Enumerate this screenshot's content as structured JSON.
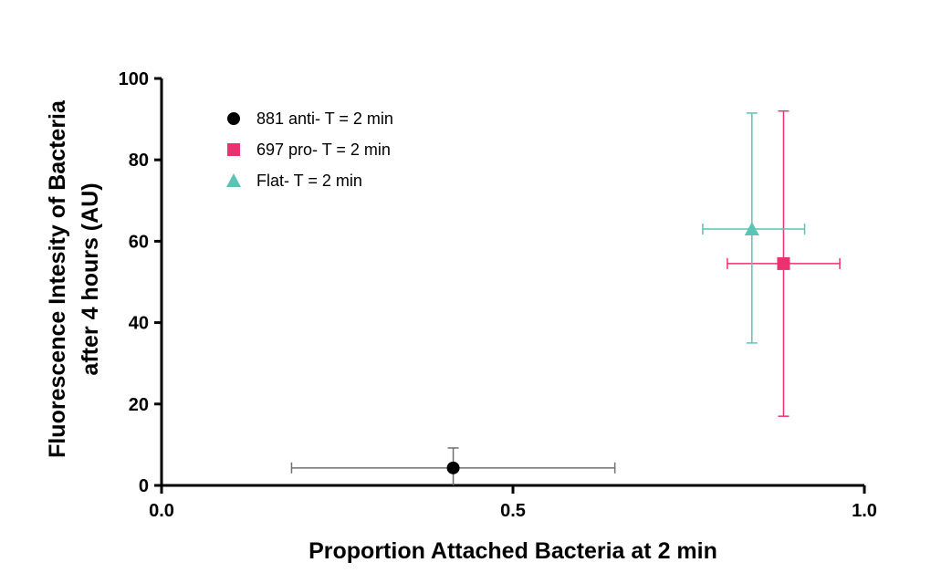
{
  "chart_data": {
    "type": "scatter",
    "xlabel": "Proportion Attached Bacteria at 2 min",
    "ylabel": [
      "Fluorescence Intesity of Bacteria",
      "after 4 hours (AU)"
    ],
    "xlim": [
      0,
      1
    ],
    "ylim": [
      0,
      100
    ],
    "x_ticks": [
      {
        "value": 0,
        "label": "0.0"
      },
      {
        "value": 0.5,
        "label": "0.5"
      },
      {
        "value": 1,
        "label": "1.0"
      }
    ],
    "y_ticks": [
      {
        "value": 0,
        "label": "0"
      },
      {
        "value": 20,
        "label": "20"
      },
      {
        "value": 40,
        "label": "40"
      },
      {
        "value": 60,
        "label": "60"
      },
      {
        "value": 80,
        "label": "80"
      },
      {
        "value": 100,
        "label": "100"
      }
    ],
    "legend_position": "top-left",
    "grid": false,
    "series": [
      {
        "name": "881 anti- T = 2 min",
        "marker": "circle",
        "color": "#000000",
        "x": 0.415,
        "y": 4.3,
        "x_err": [
          0.185,
          0.645
        ],
        "y_err": [
          0,
          9.2
        ]
      },
      {
        "name": "697 pro- T = 2 min",
        "marker": "square",
        "color": "#e8336e",
        "x": 0.885,
        "y": 54.5,
        "x_err": [
          0.805,
          0.965
        ],
        "y_err": [
          17,
          92
        ]
      },
      {
        "name": "Flat- T = 2 min",
        "marker": "triangle",
        "color": "#5cc4b2",
        "x": 0.84,
        "y": 63,
        "x_err": [
          0.77,
          0.915
        ],
        "y_err": [
          35,
          91.5
        ]
      }
    ]
  }
}
